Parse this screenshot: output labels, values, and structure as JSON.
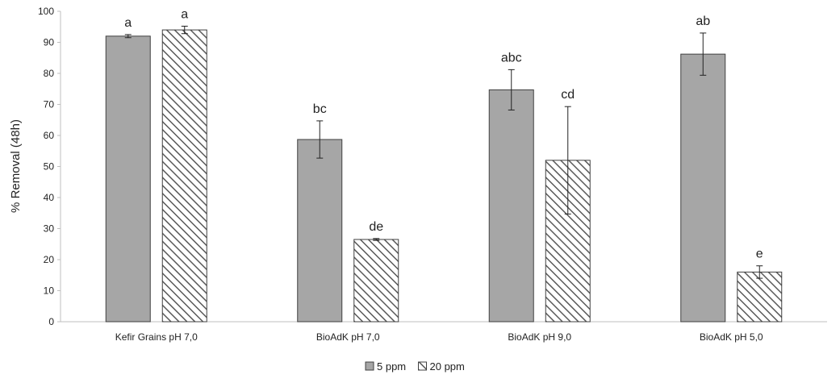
{
  "chart_data": {
    "type": "bar",
    "title": "",
    "xlabel": "",
    "ylabel": "% Removal (48h)",
    "ylim": [
      0,
      100
    ],
    "ytick_step": 10,
    "grid": false,
    "legend_position": "bottom",
    "categories": [
      "Kefir Grains pH 7,0",
      "BioAdK pH 7,0",
      "BioAdK pH 9,0",
      "BioAdK pH 5,0"
    ],
    "series": [
      {
        "name": "5 ppm",
        "pattern": "solid",
        "color": "#a6a6a6",
        "values": [
          92,
          58.7,
          74.7,
          86.2
        ],
        "errors": [
          0.5,
          6,
          6.5,
          6.8
        ],
        "letters": [
          "a",
          "bc",
          "abc",
          "ab"
        ]
      },
      {
        "name": "20 ppm",
        "pattern": "hatched",
        "color": "#595959",
        "values": [
          94,
          26.5,
          52,
          16
        ],
        "errors": [
          1.2,
          0.3,
          17.3,
          2
        ],
        "letters": [
          "a",
          "de",
          "cd",
          "e"
        ]
      }
    ]
  }
}
